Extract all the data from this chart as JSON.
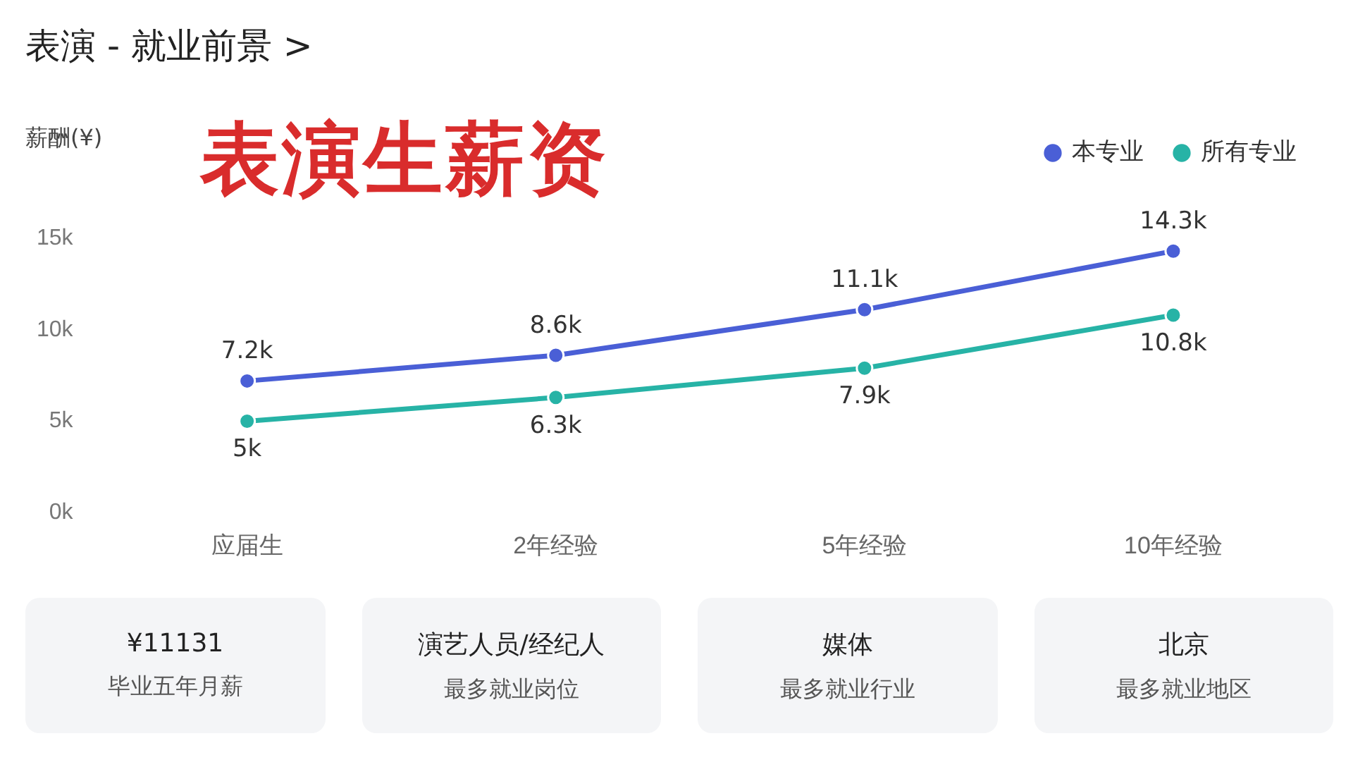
{
  "chart_data": {
    "type": "line",
    "title": "表演 - 就业前景 >",
    "subtitle": "表演生薪资",
    "ylabel": "薪酬(¥)",
    "categories": [
      "应届生",
      "2年经验",
      "5年经验",
      "10年经验"
    ],
    "series": [
      {
        "name": "本专业",
        "color": "#4a5fd6",
        "values": [
          7.2,
          8.6,
          11.1,
          14.3
        ],
        "value_labels": [
          "7.2k",
          "8.6k",
          "11.1k",
          "14.3k"
        ]
      },
      {
        "name": "所有专业",
        "color": "#27b3a6",
        "values": [
          5,
          6.3,
          7.9,
          10.8
        ],
        "value_labels": [
          "5k",
          "6.3k",
          "7.9k",
          "10.8k"
        ]
      }
    ],
    "ylim": [
      0,
      15
    ],
    "yticks": [
      {
        "value": 0,
        "label": "0k"
      },
      {
        "value": 5,
        "label": "5k"
      },
      {
        "value": 10,
        "label": "10k"
      },
      {
        "value": 15,
        "label": "15k"
      }
    ],
    "grid": false,
    "legend": "top right",
    "marker": "circle",
    "line_style": "solid",
    "annotations": [
      "¥11131",
      "毕业五年月薪",
      "演艺人员/经纪人",
      "最多就业岗位",
      "媒体",
      "最多就业行业",
      "北京",
      "最多就业地区"
    ]
  }
}
